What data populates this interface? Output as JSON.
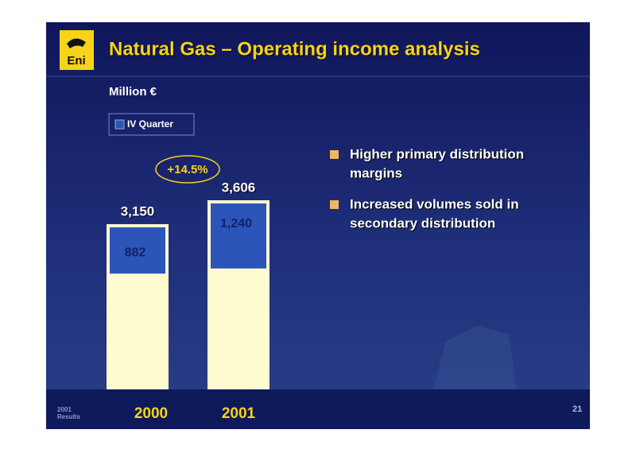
{
  "logo": "Eni",
  "chart_data": {
    "type": "bar",
    "title": "Natural Gas – Operating income analysis",
    "subtitle": "Million €",
    "categories": [
      "2000",
      "2001"
    ],
    "totals": {
      "values": [
        3150,
        3606
      ],
      "value_labels": [
        "3,150",
        "3,606"
      ],
      "color": "#fffbd0"
    },
    "series": [
      {
        "name": "IV Quarter",
        "color": "#2b55b8",
        "values": [
          882,
          1240
        ],
        "value_labels": [
          "882",
          "1,240"
        ]
      }
    ],
    "annotation": "+14.5%",
    "bullets": [
      [
        "Higher primary distribution",
        "margins"
      ],
      [
        "Increased volumes sold in",
        "secondary distribution"
      ]
    ]
  },
  "footer": {
    "label": [
      "2001",
      "Results"
    ],
    "page": "21"
  }
}
